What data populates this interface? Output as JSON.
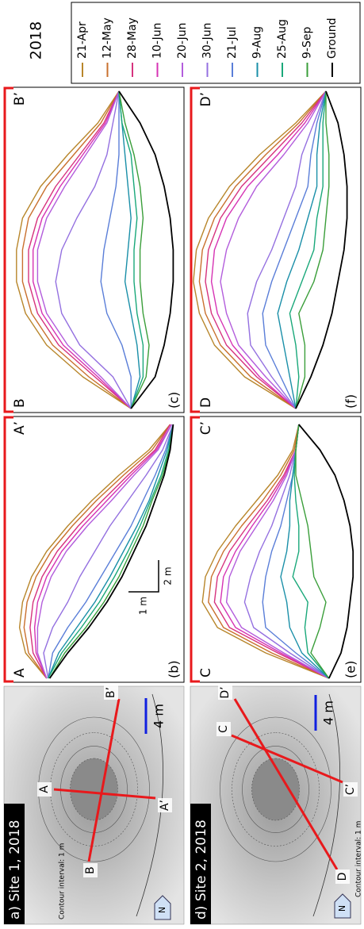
{
  "maps": [
    {
      "title": "a) Site 1, 2018",
      "contour_note": "Contour interval: 1 m",
      "scale_label": "4 m",
      "north_label": "N",
      "profile_labels": [
        "A",
        "A’",
        "B",
        "B’"
      ]
    },
    {
      "title": "d) Site 2, 2018",
      "contour_note": "Contour interval: 1 m",
      "scale_label": "4 m",
      "north_label": "N",
      "profile_labels": [
        "C",
        "C’",
        "D",
        "D’"
      ]
    }
  ],
  "legend": {
    "title": "2018",
    "series": [
      {
        "name": "21-Apr",
        "color": "#b8862b"
      },
      {
        "name": "12-May",
        "color": "#c9702e"
      },
      {
        "name": "28-May",
        "color": "#d6337e"
      },
      {
        "name": "10-Jun",
        "color": "#d633b4"
      },
      {
        "name": "20-Jun",
        "color": "#b35ddc"
      },
      {
        "name": "30-Jun",
        "color": "#9470e0"
      },
      {
        "name": "21-Jul",
        "color": "#5a7ed8"
      },
      {
        "name": "9-Aug",
        "color": "#1a8fa8"
      },
      {
        "name": "25-Aug",
        "color": "#1aa87a"
      },
      {
        "name": "9-Sep",
        "color": "#3a9e3a"
      },
      {
        "name": "Ground",
        "color": "#000000"
      }
    ]
  },
  "scale_bar": {
    "x_label": "2 m",
    "y_label": "1 m"
  },
  "chart_data": [
    {
      "type": "line",
      "panel_label": "(b)",
      "start_label": "A",
      "end_label": "A’",
      "x": [
        0,
        1.6,
        3.2,
        4.8,
        6.4,
        8,
        9.6,
        11.2,
        12.8,
        14.4,
        16
      ],
      "series": [
        {
          "values": [
            4.4,
            5.1,
            5.3,
            5.2,
            4.9,
            4.4,
            3.7,
            2.9,
            2.0,
            1.0,
            0.3
          ]
        },
        {
          "values": [
            4.4,
            5.0,
            5.15,
            5.05,
            4.75,
            4.25,
            3.55,
            2.75,
            1.85,
            0.9,
            0.3
          ]
        },
        {
          "values": [
            4.4,
            4.85,
            4.95,
            4.85,
            4.55,
            4.05,
            3.35,
            2.55,
            1.7,
            0.8,
            0.3
          ]
        },
        {
          "values": [
            4.4,
            4.75,
            4.8,
            4.7,
            4.4,
            3.9,
            3.2,
            2.4,
            1.6,
            0.75,
            0.25
          ]
        },
        {
          "values": [
            4.4,
            4.7,
            4.7,
            4.55,
            4.25,
            3.75,
            3.05,
            2.25,
            1.5,
            0.7,
            0.25
          ]
        },
        {
          "values": [
            4.35,
            4.5,
            4.2,
            3.7,
            3.3,
            2.8,
            2.3,
            1.7,
            1.1,
            0.55,
            0.2
          ]
        },
        {
          "values": [
            4.35,
            4.2,
            3.7,
            3.1,
            2.6,
            2.1,
            1.6,
            1.2,
            0.8,
            0.45,
            0.2
          ]
        },
        {
          "values": [
            4.35,
            4.0,
            3.4,
            2.8,
            2.3,
            1.85,
            1.4,
            1.0,
            0.7,
            0.4,
            0.2
          ]
        },
        {
          "values": [
            4.35,
            3.9,
            3.25,
            2.65,
            2.15,
            1.7,
            1.3,
            0.95,
            0.6,
            0.35,
            0.2
          ]
        },
        {
          "values": [
            4.3,
            3.8,
            3.1,
            2.5,
            2.0,
            1.6,
            1.2,
            0.9,
            0.55,
            0.32,
            0.2
          ]
        },
        {
          "values": [
            4.3,
            3.7,
            3.0,
            2.4,
            1.9,
            1.5,
            1.1,
            0.8,
            0.5,
            0.3,
            0.2
          ]
        }
      ]
    },
    {
      "type": "line",
      "panel_label": "(c)",
      "start_label": "B",
      "end_label": "B’",
      "x": [
        0,
        2,
        4,
        6,
        8,
        10,
        12,
        14,
        16,
        18,
        20
      ],
      "series": [
        {
          "values": [
            1.6,
            3.2,
            4.4,
            5.1,
            5.4,
            5.4,
            5.2,
            4.6,
            3.7,
            2.7,
            2.0
          ]
        },
        {
          "values": [
            1.6,
            3.0,
            4.2,
            4.9,
            5.2,
            5.2,
            5.0,
            4.4,
            3.5,
            2.6,
            2.0
          ]
        },
        {
          "values": [
            1.6,
            2.8,
            4.0,
            4.7,
            5.0,
            5.0,
            4.7,
            4.1,
            3.3,
            2.5,
            2.0
          ]
        },
        {
          "values": [
            1.6,
            2.7,
            3.85,
            4.55,
            4.85,
            4.85,
            4.55,
            3.95,
            3.2,
            2.45,
            2.0
          ]
        },
        {
          "values": [
            1.6,
            2.6,
            3.7,
            4.4,
            4.7,
            4.7,
            4.4,
            3.8,
            3.1,
            2.4,
            2.0
          ]
        },
        {
          "values": [
            1.6,
            2.2,
            3.3,
            3.9,
            4.1,
            3.9,
            3.4,
            2.8,
            2.4,
            2.2,
            2.0
          ]
        },
        {
          "values": [
            1.6,
            1.6,
            1.9,
            2.4,
            2.6,
            2.5,
            2.3,
            2.1,
            2.0,
            2.0,
            2.0
          ]
        },
        {
          "values": [
            1.6,
            1.3,
            1.4,
            1.6,
            1.8,
            1.7,
            1.6,
            1.7,
            1.8,
            1.9,
            2.0
          ]
        },
        {
          "values": [
            1.6,
            1.2,
            1.2,
            1.4,
            1.5,
            1.5,
            1.4,
            1.5,
            1.6,
            1.9,
            2.0
          ]
        },
        {
          "values": [
            1.6,
            1.1,
            1.0,
            1.2,
            1.3,
            1.3,
            1.2,
            1.3,
            1.5,
            1.8,
            2.0
          ]
        },
        {
          "values": [
            1.6,
            0.8,
            0.5,
            0.3,
            0.2,
            0.2,
            0.3,
            0.5,
            0.8,
            1.3,
            2.0
          ]
        }
      ]
    },
    {
      "type": "line",
      "panel_label": "(e)",
      "start_label": "C",
      "end_label": "C’",
      "x": [
        0,
        1.6,
        3.2,
        4.8,
        6.4,
        8,
        9.6,
        11.2,
        12.8,
        14.4,
        16
      ],
      "series": [
        {
          "values": [
            0.9,
            3.0,
            4.6,
            5.1,
            5.0,
            4.6,
            4.0,
            3.3,
            2.6,
            2.1,
            1.9
          ]
        },
        {
          "values": [
            0.9,
            2.8,
            4.4,
            4.9,
            4.8,
            4.4,
            3.8,
            3.1,
            2.5,
            2.05,
            1.9
          ]
        },
        {
          "values": [
            0.9,
            2.6,
            4.2,
            4.7,
            4.6,
            4.2,
            3.6,
            2.95,
            2.4,
            2.0,
            1.9
          ]
        },
        {
          "values": [
            0.9,
            2.5,
            4.0,
            4.5,
            4.4,
            4.0,
            3.45,
            2.85,
            2.35,
            2.0,
            1.9
          ]
        },
        {
          "values": [
            0.9,
            2.4,
            3.8,
            4.3,
            4.2,
            3.85,
            3.3,
            2.75,
            2.3,
            2.0,
            1.9
          ]
        },
        {
          "values": [
            0.9,
            2.2,
            3.4,
            3.7,
            3.5,
            3.2,
            2.8,
            2.5,
            2.2,
            2.0,
            1.9
          ]
        },
        {
          "values": [
            0.9,
            2.0,
            3.0,
            3.1,
            3.0,
            2.8,
            2.5,
            2.3,
            2.1,
            2.0,
            1.9
          ]
        },
        {
          "values": [
            0.9,
            1.8,
            2.2,
            2.3,
            2.5,
            2.3,
            2.2,
            2.2,
            2.1,
            2.0,
            1.9
          ]
        },
        {
          "values": [
            0.9,
            1.6,
            1.7,
            1.6,
            2.1,
            1.9,
            1.9,
            2.0,
            2.05,
            2.0,
            1.9
          ]
        },
        {
          "values": [
            0.9,
            1.5,
            1.2,
            1.0,
            1.4,
            1.5,
            1.6,
            1.8,
            2.0,
            2.0,
            1.9
          ]
        },
        {
          "values": [
            0.9,
            0.5,
            0.3,
            0.2,
            0.1,
            0.1,
            0.2,
            0.4,
            0.7,
            1.2,
            1.9
          ]
        }
      ]
    },
    {
      "type": "line",
      "panel_label": "(f)",
      "start_label": "D",
      "end_label": "D’",
      "x": [
        0,
        2,
        4,
        6,
        8,
        10,
        12,
        14,
        16,
        18,
        20
      ],
      "series": [
        {
          "values": [
            2.0,
            3.7,
            4.7,
            5.2,
            5.4,
            5.3,
            4.9,
            4.2,
            3.2,
            2.0,
            1.0
          ]
        },
        {
          "values": [
            2.0,
            3.5,
            4.5,
            5.0,
            5.2,
            5.1,
            4.7,
            4.0,
            3.0,
            1.9,
            1.0
          ]
        },
        {
          "values": [
            2.0,
            3.3,
            4.3,
            4.8,
            5.0,
            4.9,
            4.5,
            3.8,
            2.8,
            1.8,
            1.0
          ]
        },
        {
          "values": [
            2.0,
            3.2,
            4.1,
            4.6,
            4.8,
            4.7,
            4.3,
            3.6,
            2.6,
            1.7,
            1.0
          ]
        },
        {
          "values": [
            2.0,
            3.0,
            3.9,
            4.3,
            4.5,
            4.3,
            3.9,
            3.3,
            2.4,
            1.6,
            1.0
          ]
        },
        {
          "values": [
            2.0,
            2.8,
            3.5,
            3.6,
            3.3,
            2.8,
            2.4,
            2.0,
            1.8,
            1.4,
            1.0
          ]
        },
        {
          "values": [
            2.0,
            2.5,
            3.0,
            3.1,
            2.8,
            2.4,
            2.0,
            1.6,
            1.5,
            1.3,
            1.0
          ]
        },
        {
          "values": [
            2.0,
            2.2,
            2.4,
            2.6,
            2.3,
            1.9,
            1.6,
            1.3,
            1.3,
            1.2,
            1.0
          ]
        },
        {
          "values": [
            2.0,
            1.9,
            2.0,
            2.2,
            1.8,
            1.4,
            1.3,
            1.1,
            1.1,
            1.1,
            1.0
          ]
        },
        {
          "values": [
            2.0,
            1.7,
            1.7,
            1.9,
            1.4,
            1.1,
            1.0,
            0.9,
            0.9,
            1.0,
            1.0
          ]
        },
        {
          "values": [
            2.0,
            1.5,
            1.1,
            0.8,
            0.6,
            0.4,
            0.3,
            0.3,
            0.4,
            0.6,
            1.0
          ]
        }
      ]
    }
  ]
}
